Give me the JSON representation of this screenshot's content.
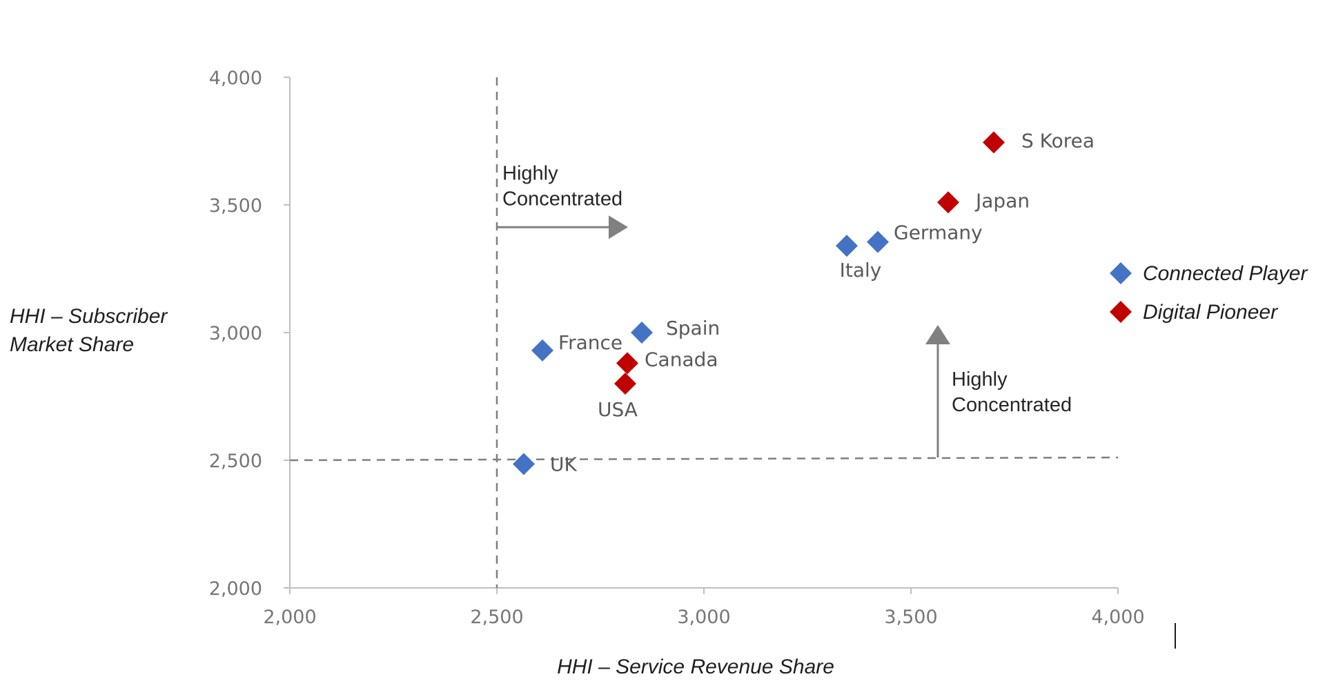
{
  "chart_data": {
    "type": "scatter",
    "xlabel": "HHI – Service Revenue Share",
    "ylabel_lines": [
      "HHI – Subscriber",
      "Market Share"
    ],
    "xlim": [
      2000,
      4000
    ],
    "ylim": [
      2000,
      4000
    ],
    "x_ticks": [
      2000,
      2500,
      3000,
      3500,
      4000
    ],
    "y_ticks": [
      2000,
      2500,
      3000,
      3500,
      4000
    ],
    "x_tick_labels": [
      "2,000",
      "2,500",
      "3,000",
      "3,500",
      "4,000"
    ],
    "y_tick_labels": [
      "2,000",
      "2,500",
      "3,000",
      "3,500",
      "4,000"
    ],
    "grid": false,
    "legend_position": "right",
    "series": [
      {
        "name": "Connected Player",
        "color": "#4472C4",
        "marker": "diamond",
        "points": [
          {
            "label": "UK",
            "x": 2565,
            "y": 2485
          },
          {
            "label": "France",
            "x": 2610,
            "y": 2930
          },
          {
            "label": "Spain",
            "x": 2850,
            "y": 3000
          },
          {
            "label": "Italy",
            "x": 3345,
            "y": 3340
          },
          {
            "label": "Germany",
            "x": 3420,
            "y": 3355
          }
        ]
      },
      {
        "name": "Digital Pioneer",
        "color": "#C00000",
        "marker": "diamond",
        "points": [
          {
            "label": "USA",
            "x": 2810,
            "y": 2800
          },
          {
            "label": "Canada",
            "x": 2815,
            "y": 2880
          },
          {
            "label": "Japan",
            "x": 3590,
            "y": 3510
          },
          {
            "label": "S Korea",
            "x": 3700,
            "y": 3745
          }
        ]
      }
    ],
    "reference_lines": [
      {
        "axis": "x",
        "value": 2500,
        "style": "dashed"
      },
      {
        "axis": "y",
        "value": 2500,
        "style": "dashed"
      }
    ],
    "annotations": [
      {
        "lines": [
          "Highly",
          "Concentrated"
        ],
        "arrow": "right",
        "x": 2500,
        "y": 3410
      },
      {
        "lines": [
          "Highly",
          "Concentrated"
        ],
        "arrow": "up",
        "x": 3565,
        "y": 2500
      }
    ]
  }
}
